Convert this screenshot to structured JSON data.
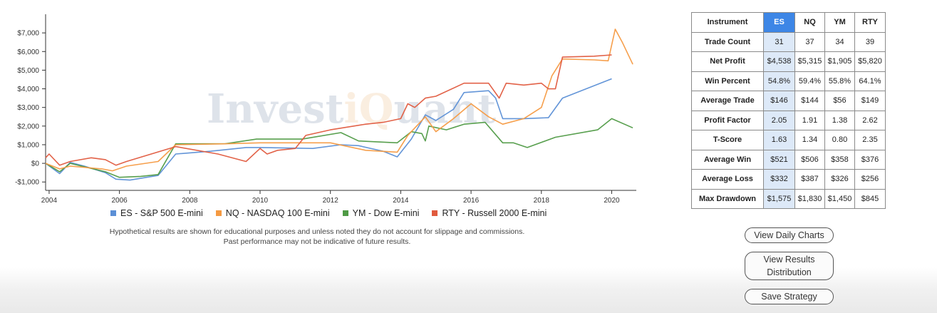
{
  "colors": {
    "es": "#5b8fd6",
    "nq": "#f59a42",
    "ym": "#4f9a45",
    "rty": "#e05a3e",
    "selected": "#3d86e6"
  },
  "watermark": {
    "text_main": "Invest",
    "text_q": "iQ",
    "text_end": "uant"
  },
  "chart_data": {
    "type": "line",
    "title": "",
    "xlabel": "",
    "ylabel": "",
    "xlim": [
      2003.9,
      2020.7
    ],
    "ylim": [
      -1450,
      8000
    ],
    "x_ticks": [
      2004,
      2006,
      2008,
      2010,
      2012,
      2014,
      2016,
      2018,
      2020
    ],
    "x_tick_labels": [
      "2004",
      "2006",
      "2008",
      "2010",
      "2012",
      "2014",
      "2016",
      "2018",
      "2020"
    ],
    "y_ticks": [
      -1000,
      0,
      1000,
      2000,
      3000,
      4000,
      5000,
      6000,
      7000
    ],
    "y_tick_labels": [
      "-$1,000",
      "$0",
      "$1,000",
      "$2,000",
      "$3,000",
      "$4,000",
      "$5,000",
      "$6,000",
      "$7,000"
    ],
    "grid": false,
    "legend_position": "bottom",
    "series": [
      {
        "key": "es",
        "name": "ES - S&P 500 E-mini",
        "points": [
          [
            2003.9,
            0
          ],
          [
            2004.3,
            -550
          ],
          [
            2004.6,
            50
          ],
          [
            2005.0,
            -150
          ],
          [
            2005.6,
            -500
          ],
          [
            2005.9,
            -850
          ],
          [
            2006.3,
            -900
          ],
          [
            2007.1,
            -650
          ],
          [
            2007.6,
            500
          ],
          [
            2008.6,
            650
          ],
          [
            2009.6,
            850
          ],
          [
            2010.0,
            850
          ],
          [
            2011.5,
            800
          ],
          [
            2012.3,
            1000
          ],
          [
            2012.8,
            950
          ],
          [
            2013.5,
            650
          ],
          [
            2013.9,
            350
          ],
          [
            2014.3,
            1300
          ],
          [
            2014.7,
            2600
          ],
          [
            2015.0,
            2300
          ],
          [
            2015.5,
            2900
          ],
          [
            2015.8,
            3800
          ],
          [
            2016.5,
            3900
          ],
          [
            2016.7,
            3500
          ],
          [
            2016.9,
            2400
          ],
          [
            2017.5,
            2400
          ],
          [
            2018.2,
            2450
          ],
          [
            2018.6,
            3500
          ],
          [
            2020.0,
            4538
          ]
        ]
      },
      {
        "key": "nq",
        "name": "NQ - NASDAQ 100 E-mini",
        "points": [
          [
            2003.9,
            0
          ],
          [
            2004.3,
            -300
          ],
          [
            2004.6,
            -150
          ],
          [
            2005.5,
            -300
          ],
          [
            2005.8,
            -400
          ],
          [
            2006.2,
            -150
          ],
          [
            2007.1,
            100
          ],
          [
            2007.6,
            1000
          ],
          [
            2009.0,
            1050
          ],
          [
            2010.0,
            1100
          ],
          [
            2011.0,
            1100
          ],
          [
            2012.0,
            1100
          ],
          [
            2013.0,
            700
          ],
          [
            2013.9,
            600
          ],
          [
            2014.2,
            1500
          ],
          [
            2014.7,
            2500
          ],
          [
            2015.0,
            1700
          ],
          [
            2015.5,
            2400
          ],
          [
            2016.0,
            3200
          ],
          [
            2016.5,
            2500
          ],
          [
            2016.9,
            2100
          ],
          [
            2017.5,
            2400
          ],
          [
            2018.0,
            3000
          ],
          [
            2018.3,
            4700
          ],
          [
            2018.6,
            5600
          ],
          [
            2019.5,
            5550
          ],
          [
            2019.9,
            5500
          ],
          [
            2020.1,
            7200
          ],
          [
            2020.3,
            6500
          ],
          [
            2020.6,
            5315
          ]
        ]
      },
      {
        "key": "ym",
        "name": "YM - Dow E-mini",
        "points": [
          [
            2003.9,
            0
          ],
          [
            2004.3,
            -450
          ],
          [
            2004.6,
            0
          ],
          [
            2005.6,
            -450
          ],
          [
            2006.0,
            -750
          ],
          [
            2006.6,
            -700
          ],
          [
            2007.1,
            -600
          ],
          [
            2007.6,
            1050
          ],
          [
            2009.0,
            1050
          ],
          [
            2009.9,
            1300
          ],
          [
            2011.2,
            1300
          ],
          [
            2012.3,
            1650
          ],
          [
            2012.8,
            1200
          ],
          [
            2013.9,
            1100
          ],
          [
            2014.3,
            1700
          ],
          [
            2014.6,
            1600
          ],
          [
            2014.7,
            1200
          ],
          [
            2014.8,
            2000
          ],
          [
            2015.3,
            1800
          ],
          [
            2015.8,
            2100
          ],
          [
            2016.4,
            2200
          ],
          [
            2016.9,
            1100
          ],
          [
            2017.2,
            1100
          ],
          [
            2017.6,
            850
          ],
          [
            2018.4,
            1400
          ],
          [
            2019.6,
            1800
          ],
          [
            2020.0,
            2400
          ],
          [
            2020.6,
            1905
          ]
        ]
      },
      {
        "key": "rty",
        "name": "RTY - Russell 2000 E-mini",
        "points": [
          [
            2003.9,
            300
          ],
          [
            2004.0,
            500
          ],
          [
            2004.3,
            -100
          ],
          [
            2004.6,
            100
          ],
          [
            2005.2,
            300
          ],
          [
            2005.6,
            200
          ],
          [
            2005.9,
            -100
          ],
          [
            2006.2,
            100
          ],
          [
            2007.6,
            900
          ],
          [
            2008.8,
            500
          ],
          [
            2009.6,
            100
          ],
          [
            2010.0,
            800
          ],
          [
            2010.2,
            500
          ],
          [
            2010.5,
            700
          ],
          [
            2011.0,
            800
          ],
          [
            2011.3,
            1500
          ],
          [
            2012.0,
            1800
          ],
          [
            2013.0,
            2100
          ],
          [
            2013.5,
            2200
          ],
          [
            2014.0,
            2400
          ],
          [
            2014.2,
            3200
          ],
          [
            2014.4,
            3000
          ],
          [
            2014.7,
            3500
          ],
          [
            2015.0,
            3600
          ],
          [
            2015.8,
            4300
          ],
          [
            2016.5,
            4300
          ],
          [
            2016.8,
            3500
          ],
          [
            2017.0,
            4300
          ],
          [
            2017.5,
            4200
          ],
          [
            2018.0,
            4300
          ],
          [
            2018.2,
            4000
          ],
          [
            2018.4,
            4000
          ],
          [
            2018.6,
            5700
          ],
          [
            2019.5,
            5750
          ],
          [
            2020.0,
            5820
          ]
        ]
      }
    ]
  },
  "legend": [
    {
      "key": "es",
      "label": "ES - S&P 500 E-mini"
    },
    {
      "key": "nq",
      "label": "NQ - NASDAQ 100 E-mini"
    },
    {
      "key": "ym",
      "label": "YM - Dow E-mini"
    },
    {
      "key": "rty",
      "label": "RTY - Russell 2000 E-mini"
    }
  ],
  "disclaimer": {
    "line1": "Hypothetical results are shown for educational purposes and unless noted they do not account for slippage and commissions.",
    "line2": "Past performance may not be indicative of future results."
  },
  "stats": {
    "header": {
      "label": "Instrument",
      "es": "ES",
      "nq": "NQ",
      "ym": "YM",
      "rty": "RTY"
    },
    "rows": [
      {
        "label": "Trade Count",
        "es": "31",
        "nq": "37",
        "ym": "34",
        "rty": "39"
      },
      {
        "label": "Net Profit",
        "es": "$4,538",
        "nq": "$5,315",
        "ym": "$1,905",
        "rty": "$5,820"
      },
      {
        "label": "Win Percent",
        "es": "54.8%",
        "nq": "59.4%",
        "ym": "55.8%",
        "rty": "64.1%"
      },
      {
        "label": "Average Trade",
        "es": "$146",
        "nq": "$144",
        "ym": "$56",
        "rty": "$149"
      },
      {
        "label": "Profit Factor",
        "es": "2.05",
        "nq": "1.91",
        "ym": "1.38",
        "rty": "2.62"
      },
      {
        "label": "T-Score",
        "es": "1.63",
        "nq": "1.34",
        "ym": "0.80",
        "rty": "2.35"
      },
      {
        "label": "Average Win",
        "es": "$521",
        "nq": "$506",
        "ym": "$358",
        "rty": "$376"
      },
      {
        "label": "Average Loss",
        "es": "$332",
        "nq": "$387",
        "ym": "$326",
        "rty": "$256"
      },
      {
        "label": "Max Drawdown",
        "es": "$1,575",
        "nq": "$1,830",
        "ym": "$1,450",
        "rty": "$845"
      }
    ]
  },
  "buttons": {
    "daily_charts": "View Daily Charts",
    "results_distribution": "View Results Distribution",
    "save_strategy": "Save Strategy"
  }
}
